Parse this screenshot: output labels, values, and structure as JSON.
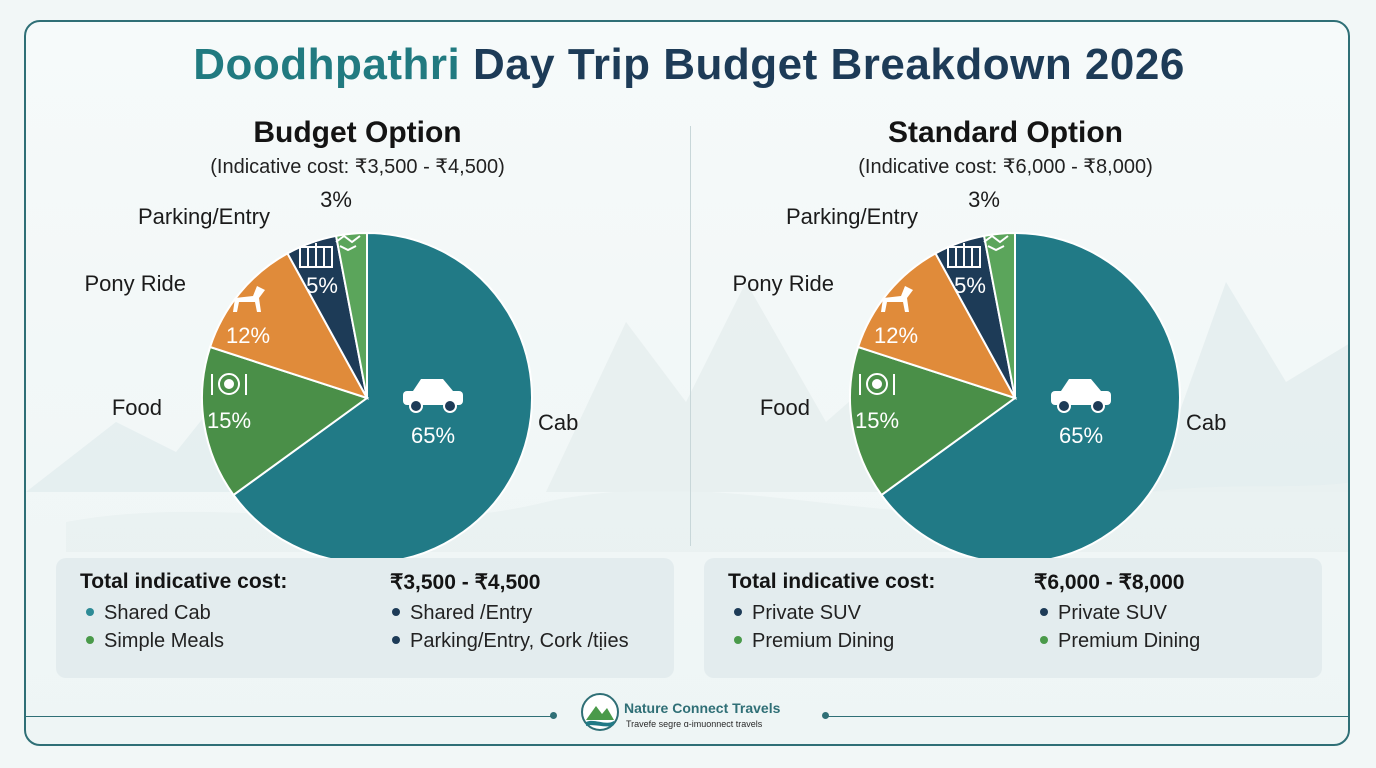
{
  "title": {
    "part1": "Doodhpathri",
    "part2": "Day Trip Budget Breakdown 2026"
  },
  "colors": {
    "cab": "#217a86",
    "food": "#4a8f48",
    "pony": "#e08b3a",
    "parking": "#1d3b57",
    "misc": "#5ba55b"
  },
  "chart_data": [
    {
      "type": "pie",
      "title": "Budget Option",
      "subtitle": "(Indicative cost: ₹3,500 - ₹4,500)",
      "slices": [
        {
          "name": "Cab",
          "value": 65,
          "label": "65%",
          "icon": "car-icon"
        },
        {
          "name": "Food",
          "value": 15,
          "label": "15%",
          "icon": "plate-icon"
        },
        {
          "name": "Pony Ride",
          "value": 12,
          "label": "12%",
          "icon": "horse-icon"
        },
        {
          "name": "Parking/Entry",
          "value": 5,
          "label": "5%",
          "icon": "gate-icon"
        },
        {
          "name": "",
          "value": 3,
          "label": "3%",
          "icon": "handshake-icon"
        }
      ]
    },
    {
      "type": "pie",
      "title": "Standard Option",
      "subtitle": "(Indicative cost: ₹6,000 - ₹8,000)",
      "slices": [
        {
          "name": "Cab",
          "value": 65,
          "label": "65%",
          "icon": "suv-icon"
        },
        {
          "name": "Food",
          "value": 15,
          "label": "15%",
          "icon": "plate-icon"
        },
        {
          "name": "Pony Ride",
          "value": 12,
          "label": "12%",
          "icon": "horse-icon"
        },
        {
          "name": "Parking/Entry",
          "value": 5,
          "label": "5%",
          "icon": "gate-icon"
        },
        {
          "name": "",
          "value": 3,
          "label": "3%",
          "icon": "handshake-icon"
        }
      ]
    }
  ],
  "summaries": [
    {
      "label": "Total indicative cost:",
      "value": "₹3,500 - ₹4,500",
      "bullets": [
        {
          "text": "Shared Cab",
          "color": "#2e8b96"
        },
        {
          "text": "Shared  /Entry",
          "color": "#1d3b57"
        },
        {
          "text": "Simple Meals",
          "color": "#4a9a4a"
        },
        {
          "text": "Parking/Entry, Cork /tịies",
          "color": "#1d3b57"
        }
      ]
    },
    {
      "label": "Total indicative cost:",
      "value": "₹6,000 - ₹8,000",
      "bullets": [
        {
          "text": "Private SUV",
          "color": "#1d3b57"
        },
        {
          "text": "Private SUV",
          "color": "#1d3b57"
        },
        {
          "text": "Premium Dining",
          "color": "#4a9a4a"
        },
        {
          "text": "Premium Dining",
          "color": "#4a9a4a"
        }
      ]
    }
  ],
  "brand": {
    "name": "Nature Connect Travels",
    "tagline": "Travefe segre ɑ-imuonnect travels"
  }
}
